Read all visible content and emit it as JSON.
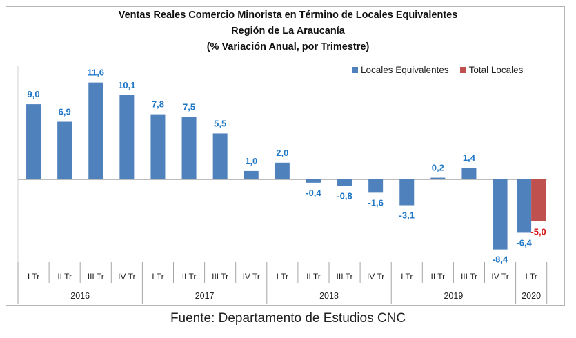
{
  "chart_data": {
    "type": "bar",
    "title": "Ventas Reales Comercio Minorista  en Término de Locales Equivalentes",
    "subtitle": "Región de La Araucanía",
    "subtitle2": "(% Variación Anual, por Trimestre)",
    "xlabel": "",
    "ylabel": "",
    "ylim": [
      -8.4,
      11.6
    ],
    "grid": false,
    "legend_position": "top-right",
    "categories": [
      "I Tr",
      "II Tr",
      "III Tr",
      "IV Tr",
      "I Tr",
      "II Tr",
      "III Tr",
      "IV Tr",
      "I Tr",
      "II Tr",
      "III Tr",
      "IV Tr",
      "I Tr",
      "II Tr",
      "III Tr",
      "IV Tr",
      "I Tr"
    ],
    "category_groups": [
      {
        "label": "2016",
        "count": 4
      },
      {
        "label": "2017",
        "count": 4
      },
      {
        "label": "2018",
        "count": 4
      },
      {
        "label": "2019",
        "count": 4
      },
      {
        "label": "2020",
        "count": 1
      }
    ],
    "series": [
      {
        "name": "Locales Equivalentes",
        "color": "#4f81bd",
        "label_color": "#1f77c8",
        "values": [
          9.0,
          6.9,
          11.6,
          10.1,
          7.8,
          7.5,
          5.5,
          1.0,
          2.0,
          -0.4,
          -0.8,
          -1.6,
          -3.1,
          0.2,
          1.4,
          -8.4,
          -6.4
        ],
        "labels": [
          "9,0",
          "6,9",
          "11,6",
          "10,1",
          "7,8",
          "7,5",
          "5,5",
          "1,0",
          "2,0",
          "-0,4",
          "-0,8",
          "-1,6",
          "-3,1",
          "0,2",
          "1,4",
          "-8,4",
          "-6,4"
        ]
      },
      {
        "name": "Total Locales",
        "color": "#c0504d",
        "label_color": "#d7191c",
        "values": [
          null,
          null,
          null,
          null,
          null,
          null,
          null,
          null,
          null,
          null,
          null,
          null,
          null,
          null,
          null,
          null,
          -5.0
        ],
        "labels": [
          "",
          "",
          "",
          "",
          "",
          "",
          "",
          "",
          "",
          "",
          "",
          "",
          "",
          "",
          "",
          "",
          "-5,0"
        ]
      }
    ]
  },
  "footer": "Fuente: Departamento de Estudios CNC"
}
